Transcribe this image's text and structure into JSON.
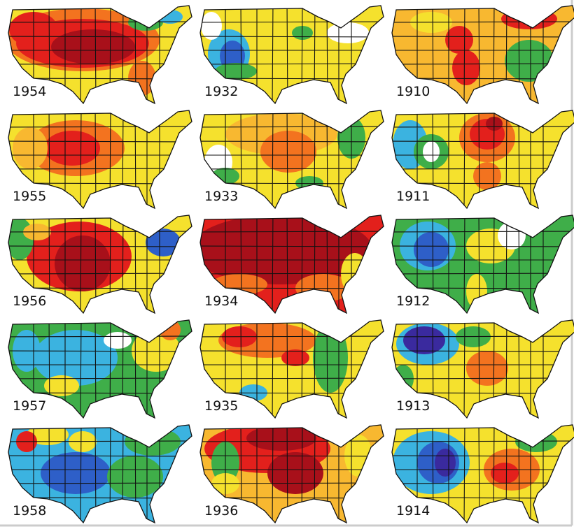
{
  "panels": [
    {
      "label": "1954"
    },
    {
      "label": "1932"
    },
    {
      "label": "1910"
    },
    {
      "label": "1955"
    },
    {
      "label": "1933"
    },
    {
      "label": "1911"
    },
    {
      "label": "1956"
    },
    {
      "label": "1934"
    },
    {
      "label": "1912"
    },
    {
      "label": "1957"
    },
    {
      "label": "1935"
    },
    {
      "label": "1913"
    },
    {
      "label": "1958"
    },
    {
      "label": "1936"
    },
    {
      "label": "1914"
    }
  ]
}
